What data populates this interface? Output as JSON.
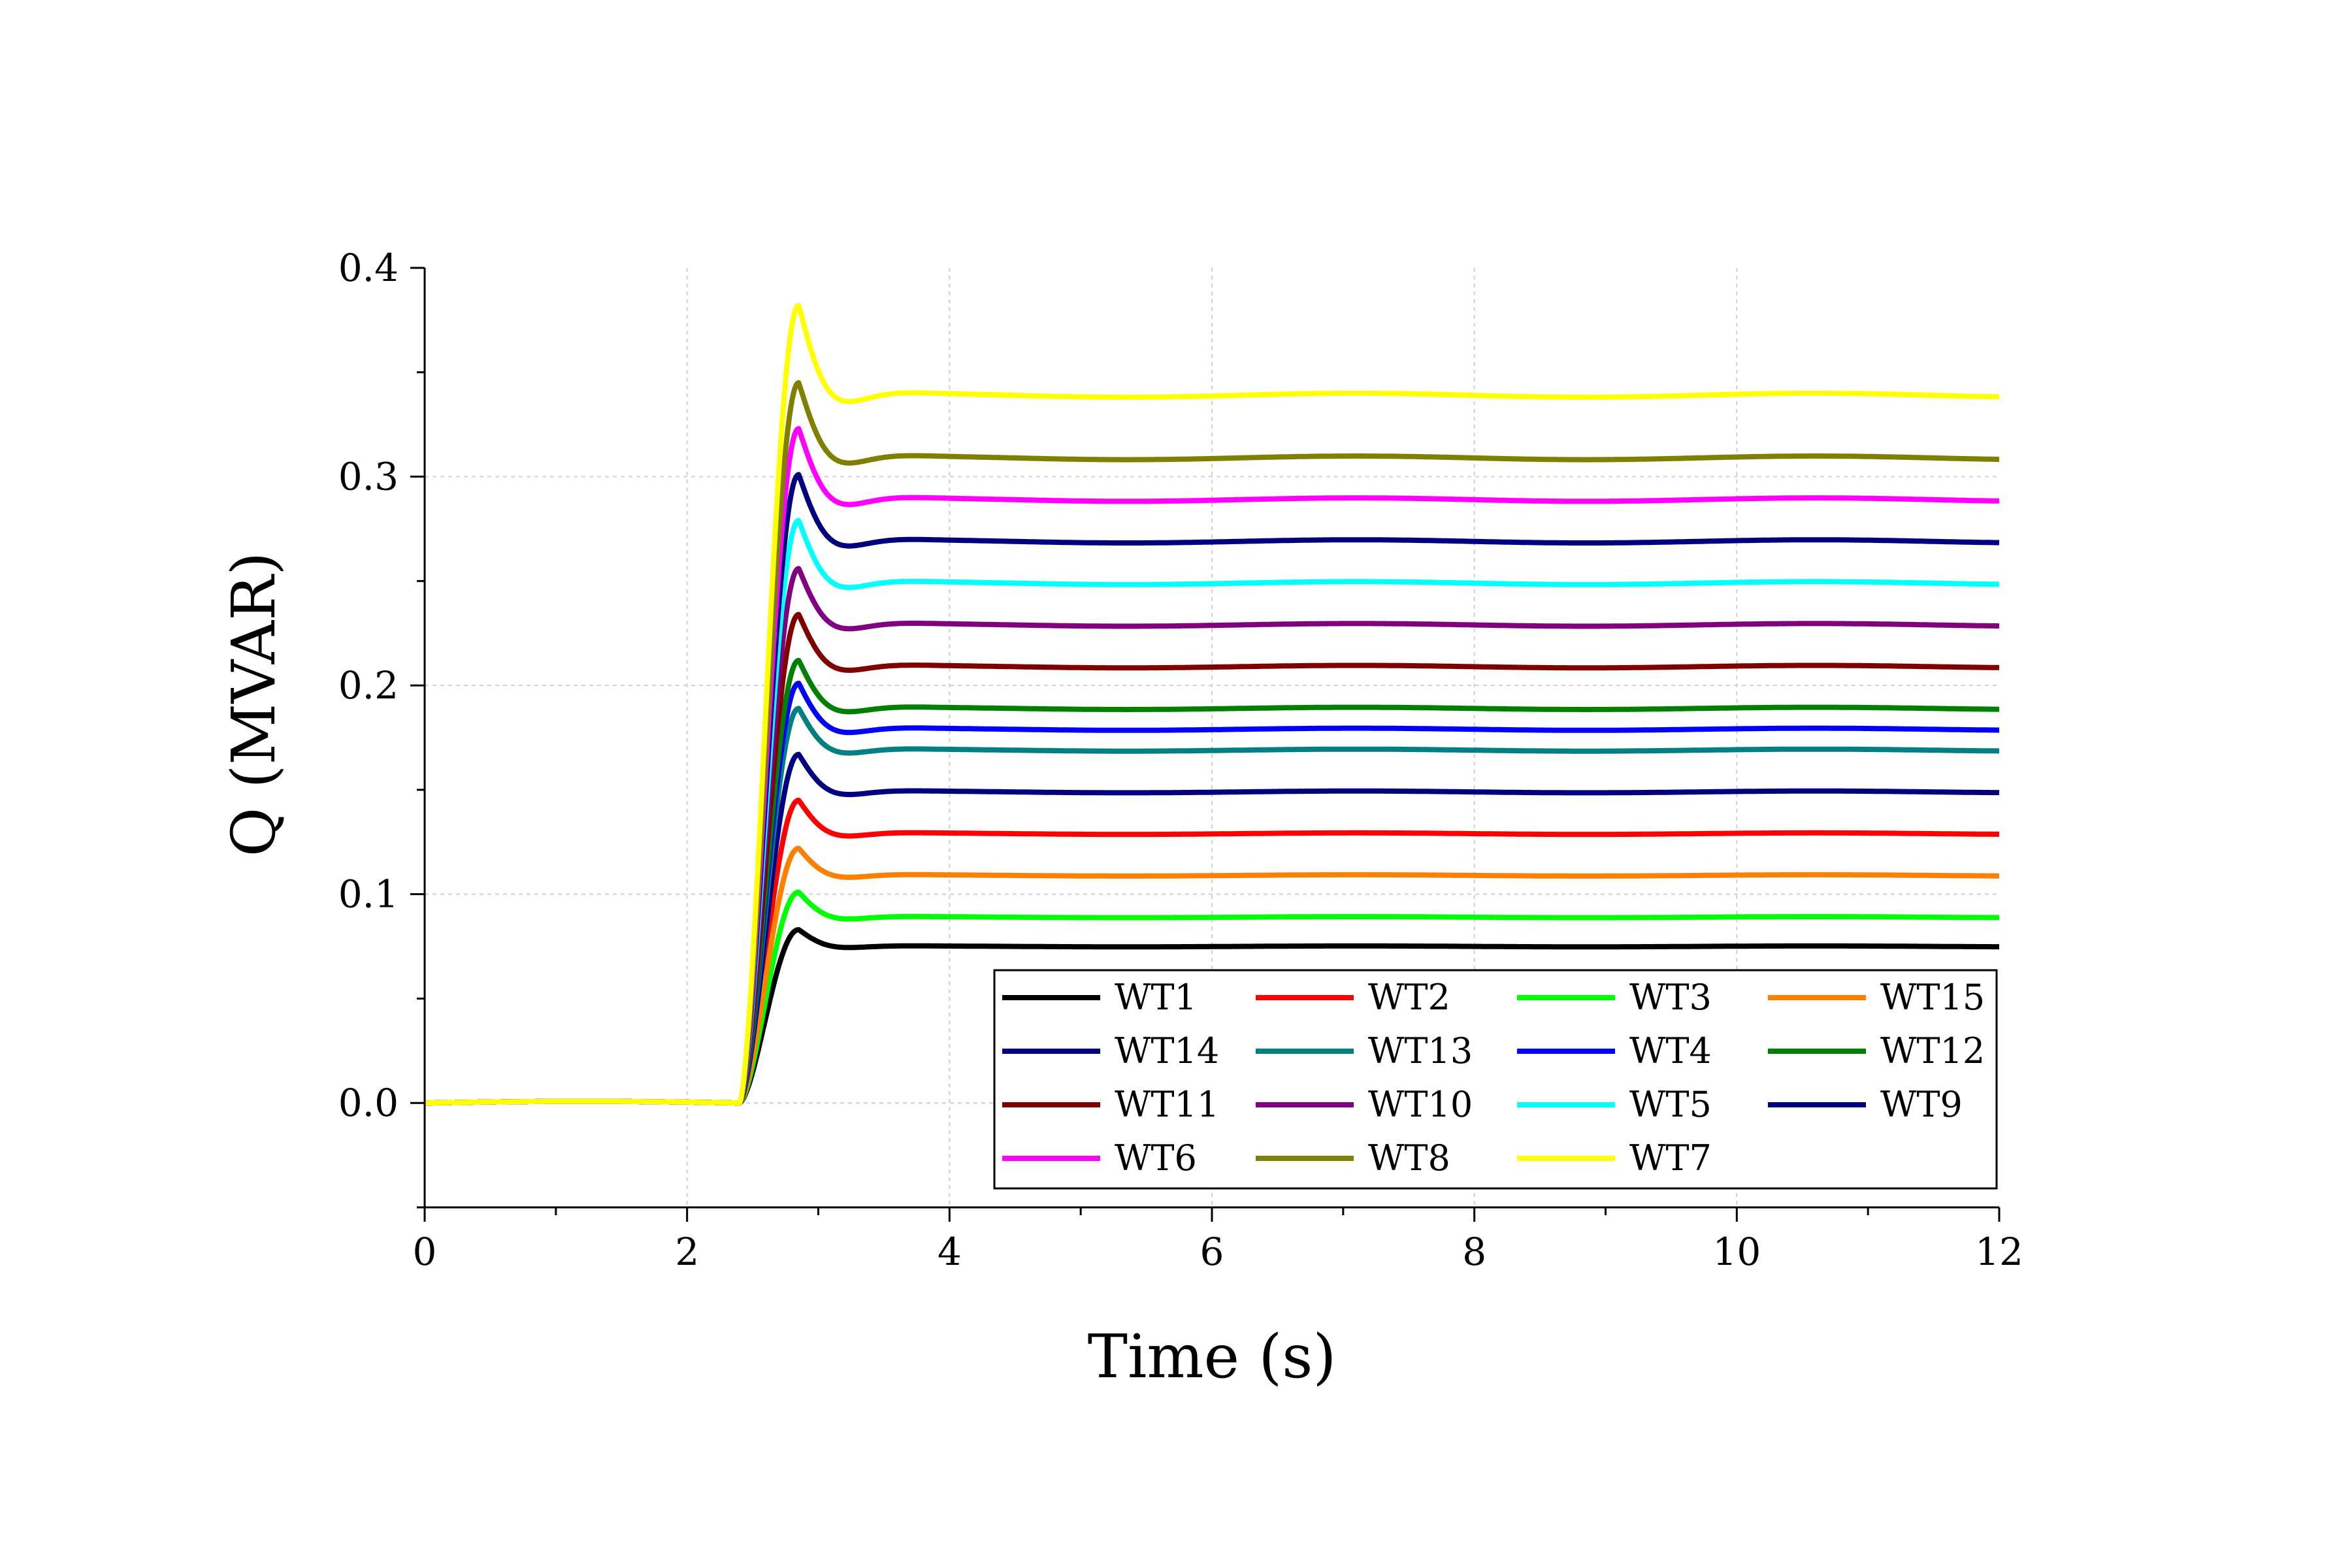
{
  "chart_data": {
    "type": "line",
    "title": "",
    "xlabel": "Time (s)",
    "ylabel": "Q (MVAR)",
    "xlim": [
      0,
      12
    ],
    "ylim": [
      -0.05,
      0.4
    ],
    "xticks": [
      "0",
      "2",
      "4",
      "6",
      "8",
      "10",
      "12"
    ],
    "yticks": [
      "0.0",
      "0.1",
      "0.2",
      "0.3",
      "0.4"
    ],
    "grid": true,
    "legend_position": "bottom-right",
    "legend_columns": 4,
    "step_time": 2.4,
    "peak_time": 2.85,
    "series": [
      {
        "name": "WT1",
        "color": "#000000",
        "peak": 0.083,
        "steady": 0.075
      },
      {
        "name": "WT2",
        "color": "#ff0000",
        "peak": 0.145,
        "steady": 0.129
      },
      {
        "name": "WT3",
        "color": "#00ff00",
        "peak": 0.101,
        "steady": 0.089
      },
      {
        "name": "WT15",
        "color": "#ff8000",
        "peak": 0.122,
        "steady": 0.109
      },
      {
        "name": "WT14",
        "color": "#000080",
        "peak": 0.167,
        "steady": 0.149
      },
      {
        "name": "WT13",
        "color": "#008080",
        "peak": 0.189,
        "steady": 0.169
      },
      {
        "name": "WT4",
        "color": "#0000ff",
        "peak": 0.201,
        "steady": 0.179
      },
      {
        "name": "WT12",
        "color": "#008000",
        "peak": 0.212,
        "steady": 0.189
      },
      {
        "name": "WT11",
        "color": "#800000",
        "peak": 0.234,
        "steady": 0.209
      },
      {
        "name": "WT10",
        "color": "#800080",
        "peak": 0.256,
        "steady": 0.229
      },
      {
        "name": "WT5",
        "color": "#00ffff",
        "peak": 0.279,
        "steady": 0.249
      },
      {
        "name": "WT9",
        "color": "#00007f",
        "peak": 0.301,
        "steady": 0.269
      },
      {
        "name": "WT6",
        "color": "#ff00ff",
        "peak": 0.323,
        "steady": 0.289
      },
      {
        "name": "WT8",
        "color": "#808000",
        "peak": 0.345,
        "steady": 0.309
      },
      {
        "name": "WT7",
        "color": "#ffff00",
        "peak": 0.382,
        "steady": 0.339
      }
    ]
  }
}
